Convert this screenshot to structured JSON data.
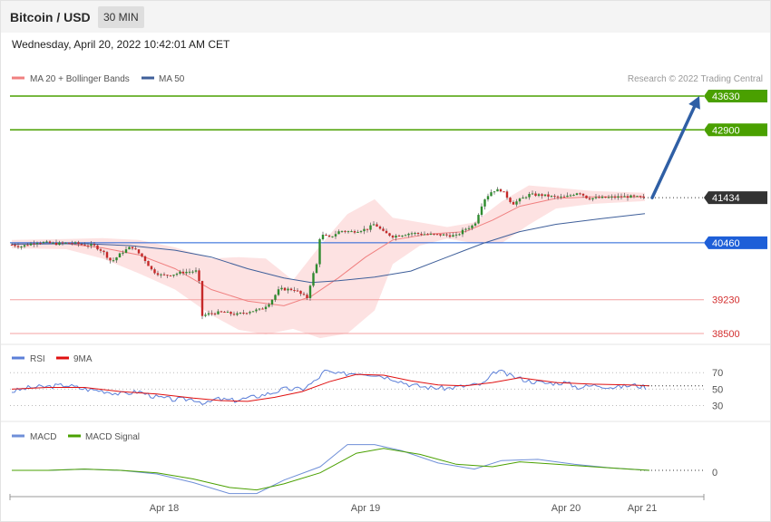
{
  "header": {
    "title": "Bitcoin / USD",
    "timeframe": "30 MIN"
  },
  "timestamp": "Wednesday, April 20, 2022 10:42:01 AM CET",
  "credit": "Research © 2022 Trading Central",
  "colors": {
    "up": "#2e8b2e",
    "down": "#c62828",
    "ma20": "#f08080",
    "band": "#fde2e2",
    "ma50": "#3f5f9a",
    "target": "#4aa000",
    "pivot": "#1e5fd8",
    "support": "#f4a0a0",
    "support_text": "#d32f2f",
    "arrow": "#2f5fa5",
    "rsi": "#5c7fd8",
    "rsi_ma": "#e01010",
    "macd": "#6f8fd8",
    "signal": "#4aa000",
    "price_tag": "#333333"
  },
  "chart_data": [
    {
      "type": "candlestick",
      "x_ticks": [
        "Apr 18",
        "Apr 19",
        "Apr 20",
        "Apr 21"
      ],
      "ylim": [
        38300,
        43900
      ],
      "legend": [
        {
          "label": "MA 20 + Bollinger Bands",
          "color": "#f08080"
        },
        {
          "label": "MA 50",
          "color": "#3f5f9a"
        }
      ],
      "levels": [
        {
          "value": 43630,
          "label": "43630",
          "kind": "resistance"
        },
        {
          "value": 42900,
          "label": "42900",
          "kind": "resistance"
        },
        {
          "value": 41434,
          "label": "41434",
          "kind": "last"
        },
        {
          "value": 40460,
          "label": "40460",
          "kind": "pivot"
        },
        {
          "value": 39230,
          "label": "39230",
          "kind": "support"
        },
        {
          "value": 38500,
          "label": "38500",
          "kind": "support"
        }
      ],
      "target_arrow": {
        "from": 41434,
        "to": 43630
      },
      "anchors": [
        [
          0,
          40420
        ],
        [
          10,
          40380
        ],
        [
          28,
          40480
        ],
        [
          48,
          40440
        ],
        [
          65,
          40460
        ],
        [
          78,
          40420
        ],
        [
          90,
          40400
        ],
        [
          100,
          40280
        ],
        [
          110,
          40050
        ],
        [
          122,
          40260
        ],
        [
          132,
          40380
        ],
        [
          145,
          40140
        ],
        [
          155,
          39850
        ],
        [
          166,
          39750
        ],
        [
          178,
          39780
        ],
        [
          190,
          39830
        ],
        [
          206,
          39850
        ],
        [
          208,
          38870
        ],
        [
          218,
          38930
        ],
        [
          232,
          38960
        ],
        [
          248,
          38910
        ],
        [
          262,
          38980
        ],
        [
          275,
          39020
        ],
        [
          285,
          39180
        ],
        [
          295,
          39460
        ],
        [
          312,
          39450
        ],
        [
          320,
          39330
        ],
        [
          326,
          39270
        ],
        [
          330,
          39650
        ],
        [
          336,
          39990
        ],
        [
          340,
          40640
        ],
        [
          350,
          40570
        ],
        [
          362,
          40720
        ],
        [
          375,
          40700
        ],
        [
          392,
          40760
        ],
        [
          400,
          40870
        ],
        [
          410,
          40680
        ],
        [
          420,
          40600
        ],
        [
          440,
          40670
        ],
        [
          460,
          40640
        ],
        [
          475,
          40630
        ],
        [
          490,
          40610
        ],
        [
          500,
          40760
        ],
        [
          510,
          40850
        ],
        [
          520,
          41380
        ],
        [
          530,
          41590
        ],
        [
          540,
          41600
        ],
        [
          552,
          41300
        ],
        [
          570,
          41500
        ],
        [
          584,
          41490
        ],
        [
          598,
          41450
        ],
        [
          610,
          41440
        ],
        [
          625,
          41560
        ],
        [
          635,
          41420
        ],
        [
          660,
          41440
        ],
        [
          680,
          41460
        ],
        [
          698,
          41434
        ]
      ],
      "ma20": [
        [
          0,
          40430
        ],
        [
          60,
          40440
        ],
        [
          100,
          40350
        ],
        [
          140,
          40200
        ],
        [
          180,
          39900
        ],
        [
          220,
          39450
        ],
        [
          260,
          39200
        ],
        [
          300,
          39100
        ],
        [
          330,
          39300
        ],
        [
          360,
          39700
        ],
        [
          390,
          40150
        ],
        [
          420,
          40520
        ],
        [
          460,
          40650
        ],
        [
          500,
          40700
        ],
        [
          530,
          40950
        ],
        [
          560,
          41250
        ],
        [
          600,
          41420
        ],
        [
          640,
          41450
        ],
        [
          698,
          41450
        ]
      ],
      "ma50": [
        [
          0,
          40430
        ],
        [
          80,
          40440
        ],
        [
          130,
          40400
        ],
        [
          180,
          40300
        ],
        [
          220,
          40150
        ],
        [
          260,
          39900
        ],
        [
          300,
          39700
        ],
        [
          330,
          39600
        ],
        [
          360,
          39640
        ],
        [
          400,
          39720
        ],
        [
          440,
          39850
        ],
        [
          480,
          40150
        ],
        [
          520,
          40450
        ],
        [
          560,
          40700
        ],
        [
          600,
          40860
        ],
        [
          650,
          40980
        ],
        [
          698,
          41090
        ]
      ],
      "band_upper": [
        [
          0,
          40520
        ],
        [
          60,
          40540
        ],
        [
          100,
          40560
        ],
        [
          140,
          40520
        ],
        [
          180,
          40360
        ],
        [
          220,
          40120
        ],
        [
          250,
          40150
        ],
        [
          280,
          40120
        ],
        [
          310,
          39650
        ],
        [
          340,
          40400
        ],
        [
          370,
          41080
        ],
        [
          400,
          41400
        ],
        [
          420,
          41000
        ],
        [
          450,
          40900
        ],
        [
          480,
          40800
        ],
        [
          510,
          40900
        ],
        [
          540,
          41350
        ],
        [
          570,
          41700
        ],
        [
          600,
          41650
        ],
        [
          640,
          41580
        ],
        [
          698,
          41540
        ]
      ],
      "band_lower": [
        [
          0,
          40340
        ],
        [
          60,
          40320
        ],
        [
          100,
          40120
        ],
        [
          140,
          39800
        ],
        [
          180,
          39450
        ],
        [
          220,
          38900
        ],
        [
          250,
          38580
        ],
        [
          280,
          38480
        ],
        [
          310,
          38600
        ],
        [
          340,
          38400
        ],
        [
          370,
          38500
        ],
        [
          400,
          39000
        ],
        [
          420,
          40000
        ],
        [
          450,
          40400
        ],
        [
          480,
          40550
        ],
        [
          510,
          40450
        ],
        [
          540,
          40450
        ],
        [
          570,
          40850
        ],
        [
          600,
          41200
        ],
        [
          640,
          41300
        ],
        [
          698,
          41360
        ]
      ],
      "price_label": "41434"
    },
    {
      "type": "line",
      "name": "RSI",
      "legend": [
        {
          "label": "RSI",
          "color": "#5c7fd8"
        },
        {
          "label": "9MA",
          "color": "#e01010"
        }
      ],
      "ylim": [
        25,
        78
      ],
      "y_ticks": [
        70,
        50,
        30
      ],
      "rsi": [
        [
          0,
          47
        ],
        [
          20,
          52
        ],
        [
          40,
          53
        ],
        [
          60,
          55
        ],
        [
          80,
          50
        ],
        [
          100,
          48
        ],
        [
          120,
          44
        ],
        [
          140,
          47
        ],
        [
          160,
          40
        ],
        [
          180,
          37
        ],
        [
          200,
          38
        ],
        [
          215,
          32
        ],
        [
          225,
          38
        ],
        [
          245,
          36
        ],
        [
          265,
          40
        ],
        [
          285,
          45
        ],
        [
          300,
          50
        ],
        [
          320,
          50
        ],
        [
          335,
          60
        ],
        [
          345,
          72
        ],
        [
          360,
          68
        ],
        [
          380,
          70
        ],
        [
          400,
          68
        ],
        [
          420,
          63
        ],
        [
          440,
          55
        ],
        [
          460,
          52
        ],
        [
          480,
          51
        ],
        [
          500,
          54
        ],
        [
          520,
          56
        ],
        [
          535,
          73
        ],
        [
          550,
          66
        ],
        [
          570,
          60
        ],
        [
          590,
          57
        ],
        [
          610,
          58
        ],
        [
          625,
          52
        ],
        [
          645,
          55
        ],
        [
          665,
          52
        ],
        [
          685,
          55
        ],
        [
          700,
          52
        ]
      ],
      "rsi_ma": [
        [
          0,
          50
        ],
        [
          40,
          52
        ],
        [
          80,
          52
        ],
        [
          120,
          47
        ],
        [
          160,
          44
        ],
        [
          200,
          39
        ],
        [
          230,
          36
        ],
        [
          260,
          35
        ],
        [
          290,
          40
        ],
        [
          320,
          47
        ],
        [
          350,
          59
        ],
        [
          380,
          68
        ],
        [
          410,
          67
        ],
        [
          440,
          60
        ],
        [
          470,
          55
        ],
        [
          500,
          54
        ],
        [
          530,
          58
        ],
        [
          560,
          64
        ],
        [
          600,
          58
        ],
        [
          640,
          56
        ],
        [
          680,
          55
        ],
        [
          703,
          54
        ]
      ]
    },
    {
      "type": "line",
      "name": "MACD",
      "legend": [
        {
          "label": "MACD",
          "color": "#6f8fd8"
        },
        {
          "label": "MACD Signal",
          "color": "#4aa000"
        }
      ],
      "ylim": [
        -30,
        30
      ],
      "y_ticks": [
        0
      ],
      "macd": [
        [
          0,
          0
        ],
        [
          40,
          0
        ],
        [
          80,
          1
        ],
        [
          120,
          0
        ],
        [
          160,
          -3
        ],
        [
          200,
          -10
        ],
        [
          240,
          -19
        ],
        [
          270,
          -19
        ],
        [
          300,
          -8
        ],
        [
          340,
          3
        ],
        [
          370,
          21
        ],
        [
          400,
          21
        ],
        [
          430,
          16
        ],
        [
          470,
          6
        ],
        [
          510,
          1
        ],
        [
          540,
          8
        ],
        [
          580,
          9
        ],
        [
          620,
          5
        ],
        [
          660,
          2
        ],
        [
          703,
          0
        ]
      ],
      "signal": [
        [
          0,
          0
        ],
        [
          40,
          0
        ],
        [
          80,
          1
        ],
        [
          120,
          0
        ],
        [
          160,
          -2
        ],
        [
          200,
          -7
        ],
        [
          240,
          -14
        ],
        [
          270,
          -16
        ],
        [
          300,
          -11
        ],
        [
          340,
          -2
        ],
        [
          380,
          14
        ],
        [
          410,
          18
        ],
        [
          450,
          13
        ],
        [
          490,
          5
        ],
        [
          530,
          3
        ],
        [
          560,
          7
        ],
        [
          600,
          5
        ],
        [
          640,
          3
        ],
        [
          680,
          1
        ],
        [
          703,
          0
        ]
      ]
    }
  ]
}
